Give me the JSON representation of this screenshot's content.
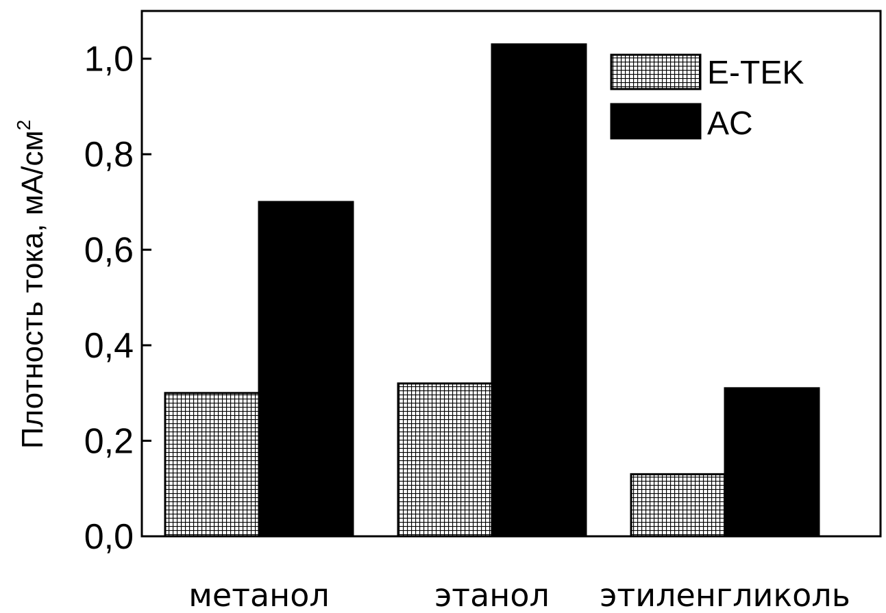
{
  "chart_data": {
    "type": "bar",
    "categories": [
      "метанол",
      "этанол",
      "этиленгликоль"
    ],
    "series": [
      {
        "name": "E-TEK",
        "values": [
          0.3,
          0.32,
          0.13
        ],
        "pattern": "crosshatch",
        "color": "#000000"
      },
      {
        "name": "AC",
        "values": [
          0.7,
          1.03,
          0.31
        ],
        "pattern": "solid",
        "color": "#000000"
      }
    ],
    "ylabel": "Плотность тока, мА/см",
    "ylabel_sup": "2",
    "ylim": [
      0,
      1.1
    ],
    "yticks": [
      0.0,
      0.2,
      0.4,
      0.6,
      0.8,
      1.0
    ],
    "ytick_labels": [
      "0,0",
      "0,2",
      "0,4",
      "0,6",
      "0,8",
      "1,0"
    ],
    "legend_position": "top-right",
    "grid": false
  }
}
